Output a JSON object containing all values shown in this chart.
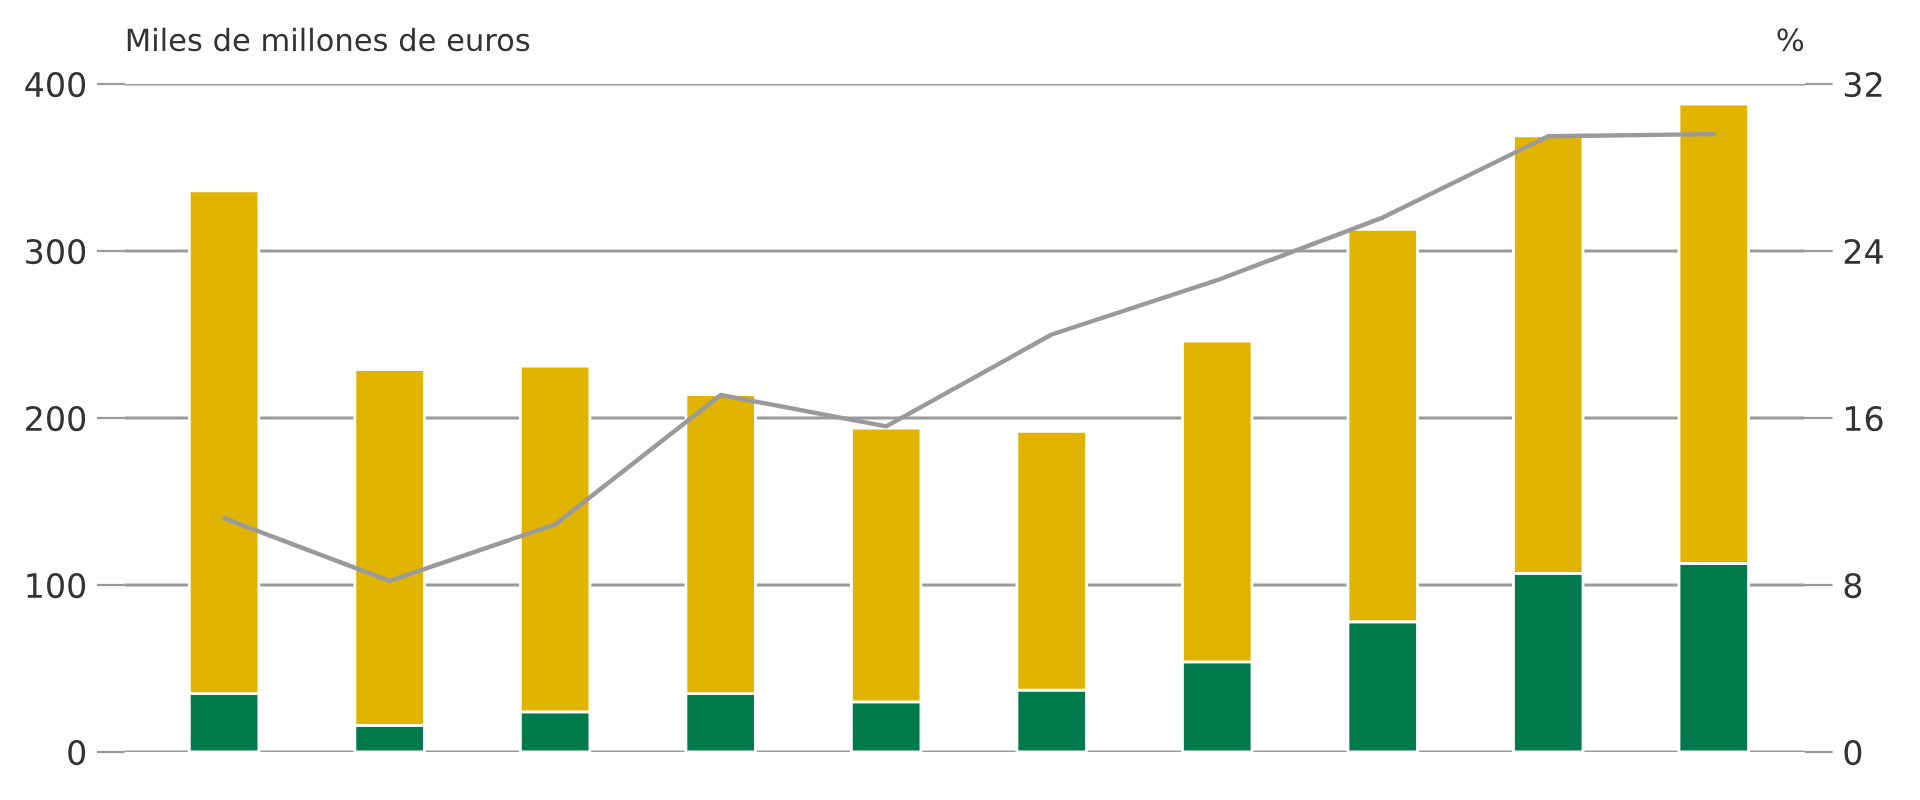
{
  "chart_data": {
    "type": "bar",
    "stacked": true,
    "ylabel": "Miles de millones de euros",
    "y2label": "%",
    "categories": [
      null,
      null,
      null,
      null,
      null,
      null,
      null,
      null,
      null,
      null
    ],
    "series": [
      {
        "color": "#007a4d",
        "values": [
          35,
          16,
          24,
          35,
          30,
          37,
          54,
          78,
          107,
          113
        ]
      },
      {
        "color": "#e0b400",
        "values": [
          301,
          213,
          207,
          179,
          164,
          155,
          192,
          235,
          262,
          275
        ]
      },
      {
        "type": "line",
        "axis": "y2",
        "color": "#9a9a9a",
        "values": [
          11.2,
          8.2,
          10.9,
          17.1,
          15.6,
          20.0,
          22.6,
          25.6,
          29.5,
          29.6
        ]
      }
    ],
    "ylim": [
      0,
      400
    ],
    "yticks": [
      0,
      100,
      200,
      300,
      400
    ],
    "y2lim": [
      0,
      32
    ],
    "y2ticks": [
      0,
      8,
      16,
      24,
      32
    ],
    "grid": "y",
    "tick_labels": "y"
  }
}
